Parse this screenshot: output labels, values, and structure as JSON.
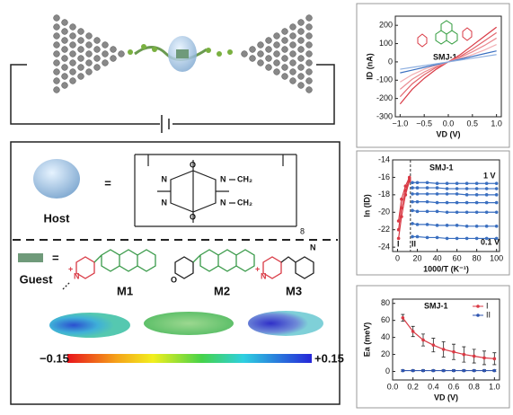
{
  "diagram": {
    "host_label": "Host",
    "equals": [
      "=",
      "="
    ],
    "host_structure": [
      "N",
      "N",
      "N",
      "N",
      "O",
      "O",
      "CH₂",
      "CH₂",
      "8"
    ],
    "guest_label": "Guest",
    "guests": [
      "M1",
      "M2",
      "M3"
    ],
    "guest_atoms": [
      "N",
      "+",
      "O",
      "N",
      "+",
      "N"
    ],
    "colorbar": [
      "−0.15",
      "+0.15"
    ]
  },
  "chart_data": [
    {
      "type": "line",
      "ylabel": "ID (nA)",
      "xlabel": "VD (V)",
      "annotations": [
        "SMJ-1"
      ],
      "x": [
        -1,
        -0.75,
        -0.5,
        -0.25,
        0,
        0.25,
        0.5,
        0.75,
        1
      ],
      "xlim": [
        -1.1,
        1.1
      ],
      "xticks": [
        {
          "value": -1,
          "label": "−1.0"
        },
        {
          "value": -0.5,
          "label": "−0.5"
        },
        {
          "value": 0,
          "label": "0.0"
        },
        {
          "value": 0.5,
          "label": "0.5"
        },
        {
          "value": 1,
          "label": "1.0"
        }
      ],
      "ylim": [
        -300,
        250
      ],
      "yticks": [
        -300,
        -200,
        -100,
        0,
        100,
        200
      ],
      "series": [
        {
          "color": "#d93a45",
          "values": [
            -230,
            -150,
            -90,
            -40,
            0,
            40,
            90,
            140,
            190
          ]
        },
        {
          "color": "#e2646c",
          "values": [
            -190,
            -120,
            -70,
            -30,
            0,
            30,
            70,
            115,
            160
          ]
        },
        {
          "color": "#ea8a90",
          "values": [
            -150,
            -95,
            -55,
            -25,
            0,
            25,
            55,
            90,
            130
          ]
        },
        {
          "color": "#f2b0b4",
          "values": [
            -110,
            -70,
            -40,
            -18,
            0,
            18,
            40,
            65,
            95
          ]
        },
        {
          "color": "#3a6fc0",
          "values": [
            -60,
            -45,
            -30,
            -15,
            0,
            15,
            30,
            45,
            60
          ]
        },
        {
          "color": "#8fb0e0",
          "values": [
            -40,
            -30,
            -20,
            -10,
            0,
            10,
            20,
            30,
            40
          ]
        }
      ]
    },
    {
      "type": "line",
      "ylabel": "ln (ID)",
      "xlabel": "1000/T (K⁻¹)",
      "annotations": [
        "SMJ-1",
        "1 V",
        "0.1 V",
        "I",
        "II"
      ],
      "xlim": [
        -5,
        103
      ],
      "xticks": [
        0,
        20,
        40,
        60,
        80,
        100
      ],
      "ylim": [
        -24.5,
        -14
      ],
      "yticks": [
        -24,
        -22,
        -20,
        -18,
        -16,
        -14
      ],
      "markers": true,
      "series": [
        {
          "color": "#3a6fc0",
          "x": [
            15,
            20,
            30,
            40,
            50,
            60,
            70,
            80,
            90,
            100
          ],
          "values": [
            -16.6,
            -16.6,
            -16.6,
            -16.7,
            -16.7,
            -16.7,
            -16.7,
            -16.7,
            -16.7,
            -16.7
          ]
        },
        {
          "color": "#3a6fc0",
          "x": [
            15,
            20,
            30,
            40,
            50,
            60,
            70,
            80,
            90,
            100
          ],
          "values": [
            -17.2,
            -17.2,
            -17.2,
            -17.2,
            -17.3,
            -17.3,
            -17.3,
            -17.3,
            -17.3,
            -17.3
          ]
        },
        {
          "color": "#3a6fc0",
          "x": [
            15,
            20,
            30,
            40,
            50,
            60,
            70,
            80,
            90,
            100
          ],
          "values": [
            -17.9,
            -17.9,
            -17.9,
            -17.9,
            -17.9,
            -17.9,
            -18,
            -18,
            -18,
            -18
          ]
        },
        {
          "color": "#3a6fc0",
          "x": [
            15,
            20,
            30,
            40,
            50,
            60,
            70,
            80,
            90,
            100
          ],
          "values": [
            -18.8,
            -18.8,
            -18.8,
            -18.9,
            -18.9,
            -18.9,
            -18.9,
            -18.9,
            -18.9,
            -18.9
          ]
        },
        {
          "color": "#3a6fc0",
          "x": [
            15,
            20,
            30,
            40,
            50,
            60,
            70,
            80,
            90,
            100
          ],
          "values": [
            -19.8,
            -19.9,
            -19.9,
            -19.9,
            -20,
            -20,
            -20,
            -20,
            -20,
            -20
          ]
        },
        {
          "color": "#3a6fc0",
          "x": [
            15,
            20,
            30,
            40,
            50,
            60,
            70,
            80,
            90,
            100
          ],
          "values": [
            -21.3,
            -21.4,
            -21.4,
            -21.5,
            -21.5,
            -21.5,
            -21.6,
            -21.6,
            -21.6,
            -21.6
          ]
        },
        {
          "color": "#3a6fc0",
          "x": [
            15,
            20,
            30,
            40,
            50,
            60,
            70,
            80,
            90,
            100
          ],
          "values": [
            -22.8,
            -22.8,
            -22.9,
            -22.9,
            -23,
            -23,
            -23,
            -23,
            -23,
            -23
          ]
        },
        {
          "color": "#d93a45",
          "x": [
            1,
            4,
            8,
            12
          ],
          "values": [
            -23,
            -20.5,
            -18,
            -16.4
          ]
        },
        {
          "color": "#d93a45",
          "x": [
            1,
            4,
            8,
            12
          ],
          "values": [
            -22,
            -19.5,
            -17.5,
            -16.2
          ]
        },
        {
          "color": "#d93a45",
          "x": [
            1,
            4,
            8,
            12
          ],
          "values": [
            -21,
            -18.5,
            -17,
            -16
          ]
        }
      ]
    },
    {
      "type": "line",
      "title": "SMJ-1",
      "ylabel": "Ea (meV)",
      "xlabel": "VD (V)",
      "xlim": [
        0,
        1.05
      ],
      "xticks": [
        {
          "value": 0,
          "label": "0.0"
        },
        {
          "value": 0.2,
          "label": "0.2"
        },
        {
          "value": 0.4,
          "label": "0.4"
        },
        {
          "value": 0.6,
          "label": "0.6"
        },
        {
          "value": 0.8,
          "label": "0.8"
        },
        {
          "value": 1,
          "label": "1.0"
        }
      ],
      "ylim": [
        -10,
        85
      ],
      "yticks": [
        0,
        20,
        40,
        60,
        80
      ],
      "markers": true,
      "legend": "upper right",
      "x": [
        0.1,
        0.2,
        0.3,
        0.4,
        0.5,
        0.6,
        0.7,
        0.8,
        0.9,
        1
      ],
      "series": [
        {
          "name": "I",
          "color": "#d93a45",
          "values": [
            63,
            47,
            37,
            31,
            26,
            23,
            20,
            18,
            16,
            15
          ],
          "errors": [
            4,
            6,
            7,
            8,
            9,
            9,
            9,
            8,
            8,
            7
          ]
        },
        {
          "name": "II",
          "color": "#2f55b0",
          "values": [
            1,
            1,
            1,
            1,
            1,
            1,
            1,
            1,
            1,
            1
          ],
          "errors": [
            1,
            1,
            1,
            1,
            1,
            1,
            1,
            1,
            1,
            1
          ]
        }
      ]
    }
  ]
}
